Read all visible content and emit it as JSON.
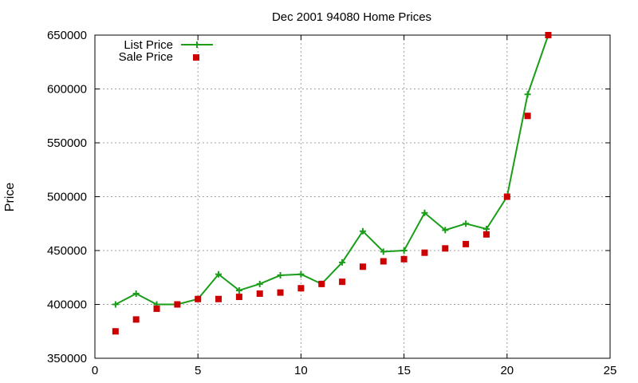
{
  "chart_data": {
    "type": "line",
    "title": "Dec 2001 94080 Home Prices",
    "xlabel": "",
    "ylabel": "Price",
    "xlim": [
      0,
      25
    ],
    "ylim": [
      350000,
      650000
    ],
    "x_ticks": [
      0,
      5,
      10,
      15,
      20,
      25
    ],
    "y_ticks": [
      350000,
      400000,
      450000,
      500000,
      550000,
      600000,
      650000
    ],
    "grid": true,
    "legend": "top-left",
    "series": [
      {
        "name": "List Price",
        "style": "line+cross",
        "color": "#1a9e1a",
        "x": [
          1,
          2,
          3,
          4,
          5,
          6,
          7,
          8,
          9,
          10,
          11,
          12,
          13,
          14,
          15,
          16,
          17,
          18,
          19,
          20,
          21,
          22
        ],
        "y": [
          400000,
          410000,
          400000,
          400000,
          405000,
          428000,
          413000,
          419000,
          427000,
          428000,
          419000,
          439000,
          468000,
          449000,
          450000,
          485000,
          469000,
          475000,
          470000,
          500000,
          595000,
          650000
        ]
      },
      {
        "name": "Sale Price",
        "style": "square",
        "color": "#cc0000",
        "x": [
          1,
          2,
          3,
          4,
          5,
          6,
          7,
          8,
          9,
          10,
          11,
          12,
          13,
          14,
          15,
          16,
          17,
          18,
          19,
          20,
          21,
          22
        ],
        "y": [
          375000,
          386000,
          396000,
          400000,
          405000,
          405000,
          407000,
          410000,
          411000,
          415000,
          419000,
          421000,
          435000,
          440000,
          442000,
          448000,
          452000,
          456000,
          465000,
          500000,
          575000,
          650000
        ]
      }
    ]
  }
}
